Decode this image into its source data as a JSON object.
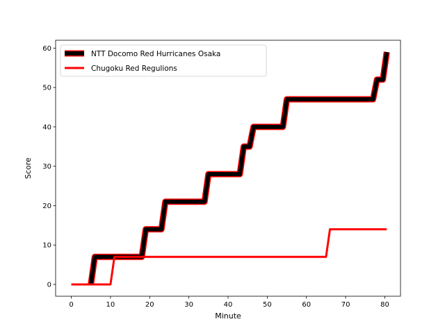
{
  "chart_data": {
    "type": "line",
    "title": "",
    "xlabel": "Minute",
    "ylabel": "Score",
    "xlim": [
      -4,
      84
    ],
    "ylim": [
      -3,
      62
    ],
    "xticks": [
      0,
      10,
      20,
      30,
      40,
      50,
      60,
      70,
      80
    ],
    "yticks": [
      0,
      10,
      20,
      30,
      40,
      50,
      60
    ],
    "grid": false,
    "legend_position": "top-left",
    "series": [
      {
        "name": "NTT Docomo Red Hurricanes Osaka",
        "color": "#000000",
        "edge_color": "#ff0000",
        "points": [
          [
            5,
            0
          ],
          [
            6,
            7
          ],
          [
            11,
            7
          ],
          [
            18,
            7
          ],
          [
            19,
            14
          ],
          [
            23,
            14
          ],
          [
            24,
            21
          ],
          [
            34,
            21
          ],
          [
            35,
            28
          ],
          [
            43,
            28
          ],
          [
            44,
            35
          ],
          [
            45.5,
            35
          ],
          [
            46.5,
            40
          ],
          [
            54,
            40
          ],
          [
            55,
            47
          ],
          [
            77,
            47
          ],
          [
            78,
            52
          ],
          [
            79.5,
            52
          ],
          [
            80.5,
            59
          ]
        ]
      },
      {
        "name": "Chugoku Red Regulions",
        "color": "#ff0000",
        "points": [
          [
            0,
            0
          ],
          [
            10,
            0
          ],
          [
            11,
            7
          ],
          [
            65,
            7
          ],
          [
            66,
            14
          ],
          [
            80.5,
            14
          ]
        ]
      }
    ]
  }
}
